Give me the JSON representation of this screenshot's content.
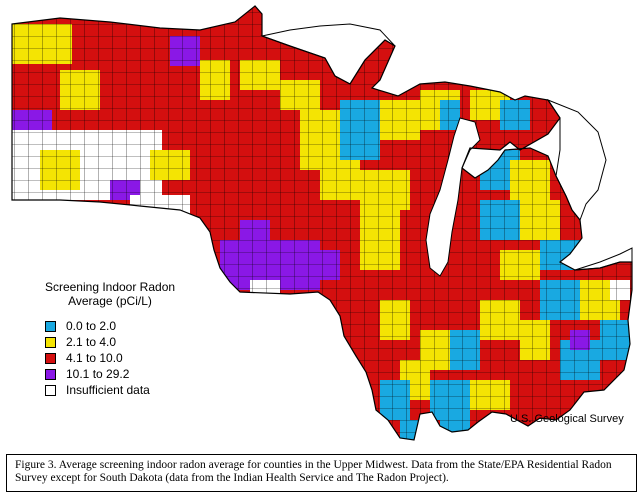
{
  "legend": {
    "title_line1": "Screening Indoor Radon",
    "title_line2": "Average (pCi/L)",
    "items": [
      {
        "label": "0.0 to 2.0",
        "color": "#19a9e1"
      },
      {
        "label": "2.1 to 4.0",
        "color": "#f4e403"
      },
      {
        "label": "4.1 to 10.0",
        "color": "#d40f0f"
      },
      {
        "label": "10.1 to 29.2",
        "color": "#8a18e6"
      },
      {
        "label": "Insufficient data",
        "color": "#ffffff"
      }
    ]
  },
  "credit": "U.S. Geological Survey",
  "caption": "Figure 3.  Average screening indoor radon average for counties in the Upper Midwest.  Data from the State/EPA Residential Radon Survey except for South Dakota (data from the Indian Health Service and The Radon Project).",
  "colors": {
    "low": "#19a9e1",
    "moderate": "#f4e403",
    "high": "#d40f0f",
    "very_high": "#8a18e6",
    "no_data": "#ffffff",
    "lake": "#ffffff",
    "border": "#000000"
  }
}
